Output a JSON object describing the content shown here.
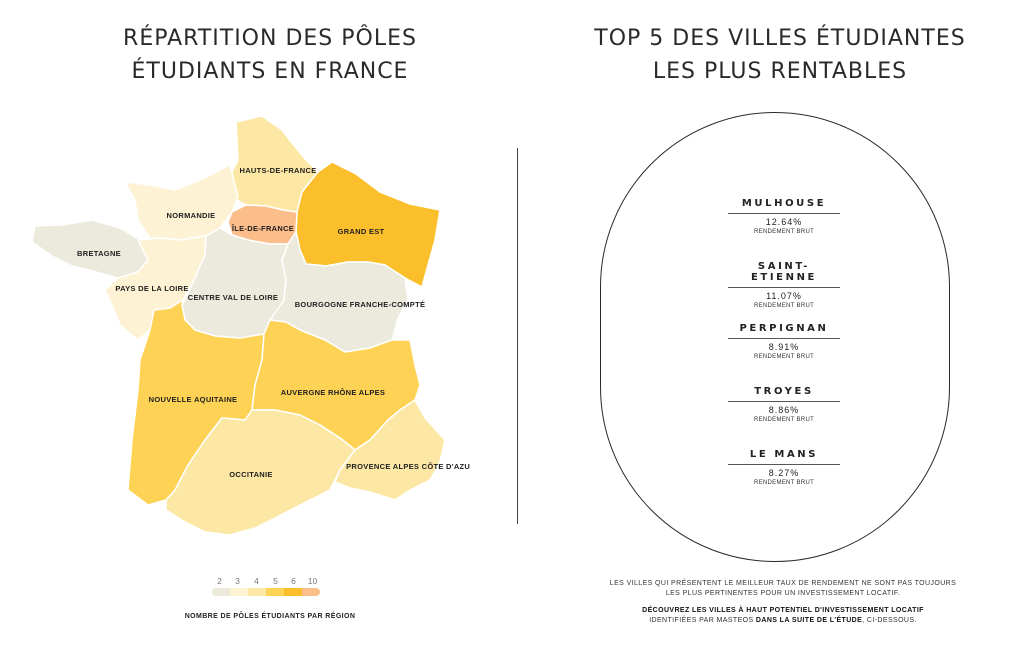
{
  "left_title": {
    "line1": "RÉPARTITION DES PÔLES",
    "line2": "ÉTUDIANTS EN FRANCE"
  },
  "right_title": {
    "line1": "TOP 5 DES VILLES ÉTUDIANTES",
    "line2": "LES PLUS RENTABLES"
  },
  "regions": [
    {
      "label": "HAUTS-DE-FRANCE",
      "students_poles": 4,
      "color": "#fde7a4"
    },
    {
      "label": "NORMANDIE",
      "students_poles": 3,
      "color": "#fdf2d3"
    },
    {
      "label": "ÎLE-DE-FRANCE",
      "students_poles": 10,
      "color": "#fbbd8a"
    },
    {
      "label": "GRAND EST",
      "students_poles": 6,
      "color": "#fbbf2c"
    },
    {
      "label": "BRETAGNE",
      "students_poles": 2,
      "color": "#ebeadd"
    },
    {
      "label": "PAYS DE LA LOIRE",
      "students_poles": 3,
      "color": "#fdf2d3"
    },
    {
      "label": "CENTRE VAL DE LOIRE",
      "students_poles": 2,
      "color": "#ebeadd"
    },
    {
      "label": "BOURGOGNE FRANCHE-COMPTÉ",
      "students_poles": 2,
      "color": "#ebeadd"
    },
    {
      "label": "NOUVELLE AQUITAINE",
      "students_poles": 5,
      "color": "#fdd255"
    },
    {
      "label": "AUVERGNE RHÔNE ALPES",
      "students_poles": 5,
      "color": "#fdd255"
    },
    {
      "label": "OCCITANIE",
      "students_poles": 4,
      "color": "#fde7a4"
    },
    {
      "label": "PROVENCE ALPES CÔTE D'AZUR",
      "students_poles": 4,
      "color": "#fde7a4"
    }
  ],
  "legend": {
    "values": [
      "2",
      "3",
      "4",
      "5",
      "6",
      "10"
    ],
    "colors": [
      "#ebeadd",
      "#fdf2d3",
      "#fde7a4",
      "#fdd255",
      "#fbbf2c",
      "#fbbd8a"
    ],
    "caption": "NOMBRE DE PÔLES ÉTUDIANTS PAR RÉGION"
  },
  "cities": [
    {
      "name": "MULHOUSE",
      "value": "12.64%",
      "sub": "RENDEMENT BRUT"
    },
    {
      "name": "SAINT-ETIENNE",
      "value": "11.07%",
      "sub": "RENDEMENT BRUT"
    },
    {
      "name": "PERPIGNAN",
      "value": "8.91%",
      "sub": "RENDEMENT BRUT"
    },
    {
      "name": "TROYES",
      "value": "8.86%",
      "sub": "RENDEMENT BRUT"
    },
    {
      "name": "LE MANS",
      "value": "8.27%",
      "sub": "RENDEMENT BRUT"
    }
  ],
  "footer": {
    "line1": "LES VILLES QUI PRÉSENTENT LE MEILLEUR TAUX DE RENDEMENT NE SONT PAS TOUJOURS",
    "line2": "LES PLUS PERTINENTES POUR UN INVESTISSEMENT LOCATIF.",
    "line3": "DÉCOUVREZ LES VILLES À HAUT POTENTIEL D'INVESTISSEMENT LOCATIF",
    "line4a": "IDENTIFIÉES PAR MASTEOS ",
    "line4b": "DANS LA SUITE DE L'ÉTUDE",
    "line4c": ", CI-DESSOUS."
  }
}
